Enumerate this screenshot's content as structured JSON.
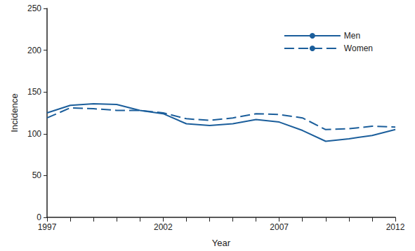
{
  "chart_data": {
    "type": "line",
    "x_label": "Year",
    "y_label": "Incidence",
    "x": [
      1997,
      1998,
      1999,
      2000,
      2001,
      2002,
      2003,
      2004,
      2005,
      2006,
      2007,
      2008,
      2009,
      2010,
      2011,
      2012
    ],
    "series": [
      {
        "name": "Men",
        "color": "#1b5e9b",
        "line_style": "solid",
        "values": [
          125,
          134,
          136,
          135,
          128,
          124,
          112,
          110,
          112,
          117,
          114,
          104,
          91,
          94,
          98,
          105
        ]
      },
      {
        "name": "Women",
        "color": "#1b5e9b",
        "line_style": "dashed",
        "values": [
          119,
          131,
          130,
          128,
          128,
          125,
          118,
          116,
          119,
          124,
          123,
          119,
          105,
          106,
          109,
          108
        ]
      }
    ],
    "xlim": [
      1997,
      2012
    ],
    "xticks": [
      1997,
      2002,
      2007,
      2012
    ],
    "ylim": [
      0,
      250
    ],
    "yticks": [
      0,
      50,
      100,
      150,
      200,
      250
    ],
    "grid": false,
    "legend": "upper right"
  }
}
